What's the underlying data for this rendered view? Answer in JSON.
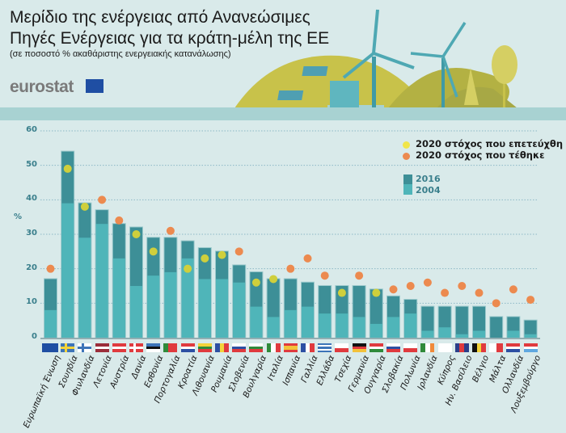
{
  "header": {
    "title": "Μερίδιο της ενέργειας από Ανανεώσιμες Πηγές Ενέργειας για τα κράτη-μέλη της ΕΕ",
    "subtitle": "(σε ποσοστό % ακαθάριστης ενεργειακής κατανάλωσης)",
    "logo": "eurostat"
  },
  "colors": {
    "bar2016": "#3d8f97",
    "bar2004": "#4fb5b9",
    "target_achieved": "#cfcf3c",
    "target_set": "#ec8a4f",
    "axis": "#3a7f8c"
  },
  "chart_data": {
    "type": "bar",
    "title": "Μερίδιο της ενέργειας από Ανανεώσιμες Πηγές Ενέργειας για τα κράτη-μέλη της ΕΕ",
    "subtitle": "(σε ποσοστό % ακαθάριστης ενεργειακής κατανάλωσης)",
    "ylabel": "%",
    "ylim": [
      0,
      60
    ],
    "yticks": [
      "0",
      "10",
      "20",
      "30",
      "40",
      "50",
      "60"
    ],
    "grid": true,
    "legend_placement": "top-right",
    "legend": {
      "achieved": "2020 στόχος που επετεύχθη",
      "set": "2020 στόχος που τέθηκε",
      "s2016": "2016",
      "s2004": "2004"
    },
    "categories": [
      "Ευρωπαϊκή Ένωση",
      "Σουηδία",
      "Φινλανδία",
      "Λετονία",
      "Αυστρία",
      "Δανία",
      "Εσθονία",
      "Πορτογαλία",
      "Κροατία",
      "Λιθουανία",
      "Ρουμανία",
      "Σλοβενία",
      "Βουλγαρία",
      "Ιταλία",
      "Ισπανία",
      "Γαλλία",
      "Ελλάδα",
      "Τσεχία",
      "Γερμανία",
      "Ουγγαρία",
      "Σλοβακία",
      "Πολωνία",
      "Ιρλανδία",
      "Κύπρος",
      "Ην. Βασίλειο",
      "Βέλγιο",
      "Μάλτα",
      "Ολλανδία",
      "Λουξεμβούργο"
    ],
    "series": [
      {
        "name": "2016",
        "values": [
          17,
          54,
          39,
          37,
          33,
          32,
          29,
          29,
          28,
          26,
          25,
          21,
          19,
          17,
          17,
          16,
          15,
          15,
          15,
          14,
          12,
          11,
          9,
          9,
          9,
          9,
          6,
          6,
          5
        ]
      },
      {
        "name": "2004",
        "values": [
          8,
          39,
          29,
          33,
          23,
          15,
          18,
          19,
          23,
          17,
          17,
          16,
          9,
          6,
          8,
          9,
          7,
          7,
          6,
          4,
          6,
          7,
          2,
          3,
          1,
          2,
          0,
          2,
          1
        ]
      }
    ],
    "targets_2020": [
      20,
      49,
      38,
      40,
      34,
      30,
      25,
      31,
      20,
      23,
      24,
      25,
      16,
      17,
      20,
      23,
      18,
      13,
      18,
      13,
      14,
      15,
      16,
      13,
      15,
      13,
      10,
      14,
      11
    ],
    "target_achieved": [
      false,
      true,
      true,
      false,
      false,
      true,
      true,
      false,
      true,
      true,
      true,
      false,
      true,
      true,
      false,
      false,
      false,
      true,
      false,
      true,
      false,
      false,
      false,
      false,
      false,
      false,
      false,
      false,
      false
    ]
  },
  "flags": [
    {
      "t": "eu",
      "c": [
        "#1f4ea3"
      ]
    },
    {
      "t": "nordic",
      "c": [
        "#3d74b8",
        "#f3d33a"
      ]
    },
    {
      "t": "nordic",
      "c": [
        "#ffffff",
        "#3d74b8"
      ]
    },
    {
      "t": "h",
      "c": [
        "#9b2d3a",
        "#ffffff",
        "#9b2d3a"
      ]
    },
    {
      "t": "h",
      "c": [
        "#e03a3e",
        "#ffffff",
        "#e03a3e"
      ]
    },
    {
      "t": "nordic",
      "c": [
        "#e03a3e",
        "#ffffff"
      ]
    },
    {
      "t": "h",
      "c": [
        "#3d74b8",
        "#111111",
        "#ffffff"
      ]
    },
    {
      "t": "v",
      "c": [
        "#2f8a3a",
        "#e03a3e",
        "#e03a3e"
      ]
    },
    {
      "t": "h",
      "c": [
        "#e03a3e",
        "#ffffff",
        "#2c4fa3"
      ]
    },
    {
      "t": "h",
      "c": [
        "#f3d33a",
        "#2f8a3a",
        "#e03a3e"
      ]
    },
    {
      "t": "v",
      "c": [
        "#2c4fa3",
        "#f3d33a",
        "#e03a3e"
      ]
    },
    {
      "t": "h",
      "c": [
        "#ffffff",
        "#2c4fa3",
        "#e03a3e"
      ]
    },
    {
      "t": "h",
      "c": [
        "#ffffff",
        "#2f8a3a",
        "#e03a3e"
      ]
    },
    {
      "t": "v",
      "c": [
        "#2f8a3a",
        "#ffffff",
        "#e03a3e"
      ]
    },
    {
      "t": "h",
      "c": [
        "#e03a3e",
        "#f3c23a",
        "#f3c23a",
        "#e03a3e"
      ]
    },
    {
      "t": "v",
      "c": [
        "#2c4fa3",
        "#ffffff",
        "#e03a3e"
      ]
    },
    {
      "t": "h",
      "c": [
        "#3d74b8",
        "#ffffff",
        "#3d74b8",
        "#ffffff",
        "#3d74b8"
      ]
    },
    {
      "t": "h",
      "c": [
        "#ffffff",
        "#e03a3e"
      ]
    },
    {
      "t": "h",
      "c": [
        "#111111",
        "#e03a3e",
        "#f3c23a"
      ]
    },
    {
      "t": "h",
      "c": [
        "#e03a3e",
        "#ffffff",
        "#2f8a3a"
      ]
    },
    {
      "t": "h",
      "c": [
        "#ffffff",
        "#2c4fa3",
        "#e03a3e"
      ]
    },
    {
      "t": "h",
      "c": [
        "#ffffff",
        "#e03a3e"
      ]
    },
    {
      "t": "v",
      "c": [
        "#2f8a3a",
        "#ffffff",
        "#f08a3a"
      ]
    },
    {
      "t": "h",
      "c": [
        "#ffffff"
      ]
    },
    {
      "t": "v",
      "c": [
        "#2c3f8a",
        "#e03a3e",
        "#2c3f8a"
      ]
    },
    {
      "t": "v",
      "c": [
        "#111111",
        "#f3d33a",
        "#e03a3e"
      ]
    },
    {
      "t": "v",
      "c": [
        "#ffffff",
        "#e03a3e"
      ]
    },
    {
      "t": "h",
      "c": [
        "#e03a3e",
        "#ffffff",
        "#2c4fa3"
      ]
    },
    {
      "t": "h",
      "c": [
        "#e03a3e",
        "#ffffff",
        "#5fa8e0"
      ]
    }
  ]
}
